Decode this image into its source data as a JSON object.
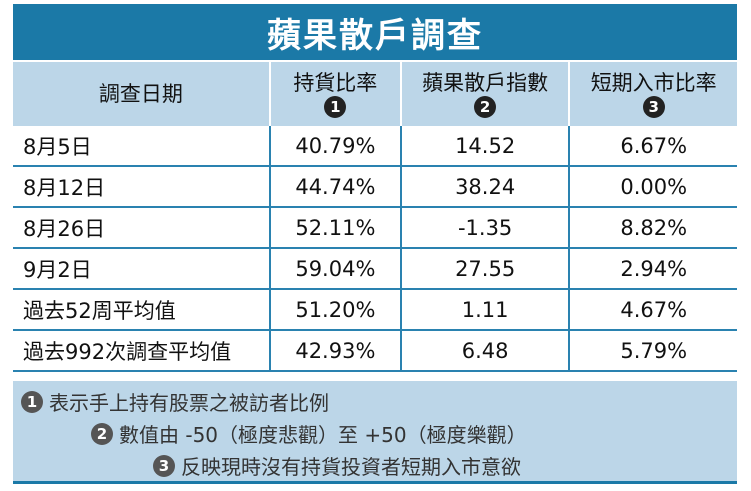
{
  "title": "蘋果散戶調查",
  "headers": [
    {
      "label": "調查日期",
      "badge": ""
    },
    {
      "label": "持貨比率",
      "badge": "1"
    },
    {
      "label": "蘋果散戶指數",
      "badge": "2"
    },
    {
      "label": "短期入市比率",
      "badge": "3"
    }
  ],
  "rows": [
    [
      "8月5日",
      "40.79%",
      "14.52",
      "6.67%"
    ],
    [
      "8月12日",
      "44.74%",
      "38.24",
      "0.00%"
    ],
    [
      "8月26日",
      "52.11%",
      "-1.35",
      "8.82%"
    ],
    [
      "9月2日",
      "59.04%",
      "27.55",
      "2.94%"
    ],
    [
      "過去52周平均值",
      "51.20%",
      "1.11",
      "4.67%"
    ],
    [
      "過去992次調查平均值",
      "42.93%",
      "6.48",
      "5.79%"
    ]
  ],
  "notes": [
    {
      "badge": "1",
      "text": "表示手上持有股票之被訪者比例"
    },
    {
      "badge": "2",
      "text": "數值由 -50（極度悲觀）至 +50（極度樂觀）"
    },
    {
      "badge": "3",
      "text": "反映現時沒有持貨投資者短期入市意欲"
    }
  ],
  "colors": {
    "title_bg": "#1b79a7",
    "header_bg": "#bcd6e8",
    "row_line": "#2a82b0"
  }
}
